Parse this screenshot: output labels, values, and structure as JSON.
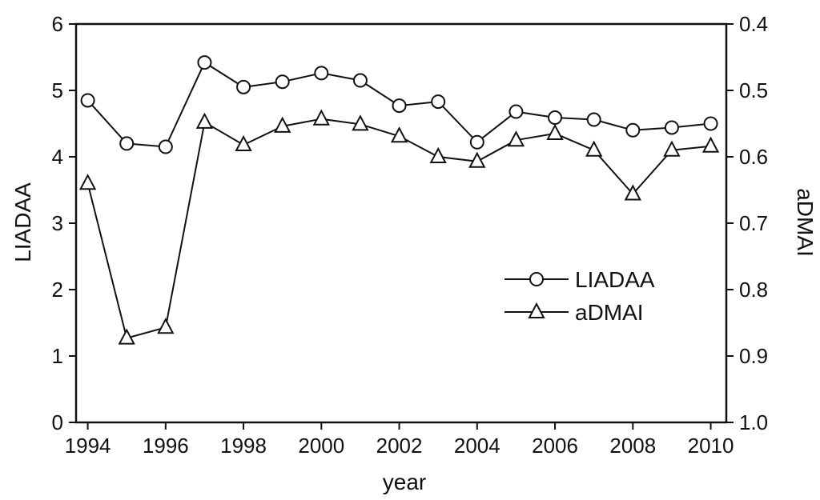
{
  "chart_data": {
    "type": "line",
    "title": "",
    "xlabel": "year",
    "ylabel_left": "LIADAA",
    "ylabel_right": "aDMAI",
    "x": [
      1994,
      1995,
      1996,
      1997,
      1998,
      1999,
      2000,
      2001,
      2002,
      2003,
      2004,
      2005,
      2006,
      2007,
      2008,
      2009,
      2010
    ],
    "x_ticks": [
      "1994",
      "1996",
      "1998",
      "2000",
      "2002",
      "2004",
      "2006",
      "2008",
      "2010"
    ],
    "xlim": [
      1993.7,
      2010.4
    ],
    "ylim_left": [
      0,
      6
    ],
    "ylim_right": [
      1.0,
      0.4
    ],
    "y_ticks_left": [
      "0",
      "1",
      "2",
      "3",
      "4",
      "5",
      "6"
    ],
    "y_ticks_right": [
      "1.0",
      "0.9",
      "0.8",
      "0.7",
      "0.6",
      "0.5",
      "0.4"
    ],
    "right_axis_inverted": true,
    "grid": false,
    "legend_position": "center-right",
    "series": [
      {
        "name": "LIADAA",
        "axis": "left",
        "marker": "circle",
        "values": [
          4.85,
          4.2,
          4.15,
          5.42,
          5.05,
          5.13,
          5.26,
          5.15,
          4.77,
          4.83,
          4.22,
          4.68,
          4.59,
          4.56,
          4.4,
          4.44,
          4.5
        ]
      },
      {
        "name": "aDMAI",
        "axis": "right",
        "marker": "triangle",
        "values": [
          0.64,
          0.873,
          0.857,
          0.548,
          0.582,
          0.554,
          0.543,
          0.551,
          0.569,
          0.6,
          0.607,
          0.575,
          0.565,
          0.59,
          0.656,
          0.59,
          0.584
        ]
      }
    ]
  }
}
